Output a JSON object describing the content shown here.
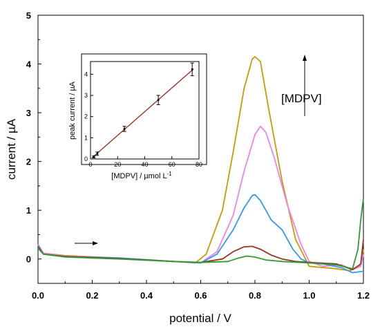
{
  "chart_data": [
    {
      "type": "line",
      "title": "",
      "xlabel": "potential / V",
      "ylabel": "current / µA",
      "xlim": [
        0.0,
        1.2
      ],
      "ylim": [
        -0.5,
        5
      ],
      "xticks": [
        "0.0",
        "0.2",
        "0.4",
        "0.6",
        "0.8",
        "1.0",
        "1.2"
      ],
      "yticks": [
        "0",
        "1",
        "2",
        "3",
        "4",
        "5"
      ],
      "annotations": [
        "[MDPV]"
      ],
      "series": [
        {
          "color": "#cc9900",
          "x": [
            0.0,
            0.02,
            0.1,
            0.3,
            0.5,
            0.58,
            0.62,
            0.68,
            0.72,
            0.76,
            0.79,
            0.8,
            0.82,
            0.85,
            0.9,
            0.95,
            1.0,
            1.1,
            1.15,
            1.19,
            1.2
          ],
          "values": [
            0.3,
            0.12,
            0.07,
            0.02,
            -0.05,
            -0.08,
            0.1,
            1.0,
            2.2,
            3.5,
            4.1,
            4.15,
            4.05,
            3.1,
            1.6,
            0.4,
            -0.15,
            -0.2,
            -0.24,
            -0.12,
            0.2
          ]
        },
        {
          "color": "#ee82ee",
          "x": [
            0.0,
            0.02,
            0.1,
            0.3,
            0.5,
            0.6,
            0.66,
            0.72,
            0.76,
            0.8,
            0.82,
            0.84,
            0.87,
            0.92,
            0.97,
            1.0,
            1.05,
            1.12,
            1.16,
            1.19,
            1.2
          ],
          "values": [
            0.3,
            0.12,
            0.06,
            0.02,
            -0.05,
            -0.08,
            0.15,
            0.9,
            1.8,
            2.55,
            2.72,
            2.6,
            2.1,
            1.1,
            0.3,
            -0.05,
            -0.15,
            -0.12,
            -0.22,
            -0.15,
            0.1
          ]
        },
        {
          "color": "#3399ee",
          "x": [
            0.0,
            0.02,
            0.1,
            0.3,
            0.5,
            0.6,
            0.66,
            0.72,
            0.76,
            0.79,
            0.8,
            0.82,
            0.86,
            0.9,
            0.94,
            0.97,
            1.0,
            1.05,
            1.12,
            1.16,
            1.2
          ],
          "values": [
            0.28,
            0.1,
            0.05,
            0.02,
            -0.05,
            -0.08,
            0.1,
            0.6,
            1.05,
            1.3,
            1.32,
            1.2,
            0.8,
            0.6,
            0.2,
            0.0,
            -0.08,
            -0.1,
            -0.18,
            -0.28,
            -0.25
          ]
        },
        {
          "color": "#993322",
          "x": [
            0.0,
            0.02,
            0.1,
            0.3,
            0.5,
            0.6,
            0.68,
            0.72,
            0.76,
            0.79,
            0.82,
            0.86,
            0.9,
            0.95,
            1.0,
            1.1,
            1.16,
            1.19,
            1.2
          ],
          "values": [
            0.25,
            0.1,
            0.05,
            0.01,
            -0.05,
            -0.07,
            0.0,
            0.15,
            0.25,
            0.26,
            0.2,
            0.08,
            0.0,
            -0.05,
            -0.07,
            -0.1,
            -0.22,
            -0.1,
            0.4
          ]
        },
        {
          "color": "#339933",
          "x": [
            0.0,
            0.02,
            0.1,
            0.3,
            0.5,
            0.6,
            0.7,
            0.74,
            0.77,
            0.8,
            0.84,
            0.9,
            1.0,
            1.1,
            1.16,
            1.18,
            1.19,
            1.2
          ],
          "values": [
            0.22,
            0.1,
            0.04,
            0.0,
            -0.05,
            -0.07,
            -0.05,
            0.02,
            0.06,
            0.04,
            -0.02,
            -0.05,
            -0.08,
            -0.12,
            -0.2,
            0.2,
            0.8,
            1.25
          ]
        }
      ]
    },
    {
      "type": "scatter",
      "title": "",
      "xlabel": "[MDPV] / µmol L",
      "xlabel_sup": "-1",
      "ylabel": "peak current / µA",
      "xlim": [
        0,
        80
      ],
      "ylim": [
        0,
        4.6
      ],
      "xticks": [
        "0",
        "20",
        "40",
        "60",
        "80"
      ],
      "yticks": [
        "0",
        "1",
        "2",
        "3",
        "4"
      ],
      "x": [
        2.5,
        5,
        25,
        50,
        75
      ],
      "values": [
        0.1,
        0.25,
        1.42,
        2.78,
        4.23
      ],
      "error": [
        0.05,
        0.08,
        0.12,
        0.22,
        0.3
      ],
      "fit_line": {
        "color": "#993322",
        "x": [
          1,
          76
        ],
        "values": [
          0.05,
          4.25
        ]
      }
    }
  ]
}
